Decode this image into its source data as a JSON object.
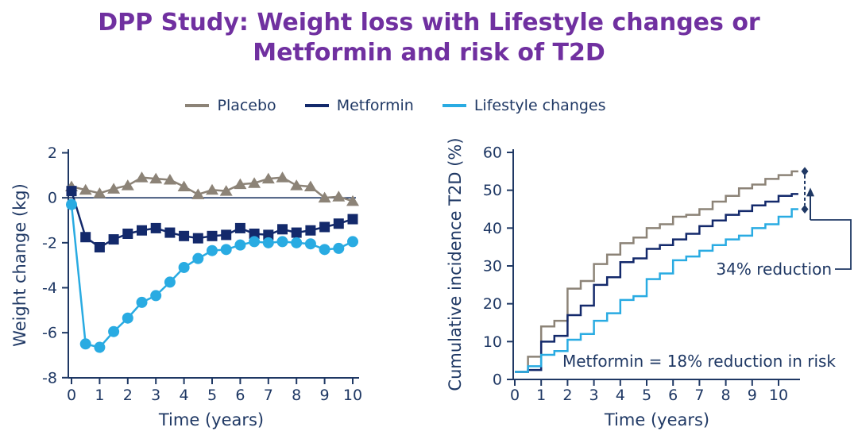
{
  "title": {
    "text": "DPP Study: Weight loss with Lifestyle changes or Metformin and risk of T2D",
    "color": "#7030A0"
  },
  "legend": {
    "items": [
      {
        "label": "Placebo",
        "color": "#8C8377"
      },
      {
        "label": "Metformin",
        "color": "#13296B"
      },
      {
        "label": "Lifestyle changes",
        "color": "#29ABE2"
      }
    ]
  },
  "colors": {
    "axis_and_text": "#1F3864",
    "title_purple": "#7030A0",
    "placebo_gray": "#8C8377",
    "metformin_navy": "#13296B",
    "lifestyle_cyan": "#29ABE2"
  },
  "chart_data": [
    {
      "id": "weight-change",
      "type": "line",
      "title": "",
      "xlabel": "Time (years)",
      "ylabel": "Weight change (kg)",
      "xlim": [
        0,
        10
      ],
      "ylim": [
        -8,
        2
      ],
      "xticks": [
        0,
        1,
        2,
        3,
        4,
        5,
        6,
        7,
        8,
        9,
        10
      ],
      "yticks": [
        2,
        0,
        -2,
        -4,
        -6,
        -8
      ],
      "grid": false,
      "zero_line": true,
      "legend_position": "top",
      "x": [
        0,
        0.5,
        1,
        1.5,
        2,
        2.5,
        3,
        3.5,
        4,
        4.5,
        5,
        5.5,
        6,
        6.5,
        7,
        7.5,
        8,
        8.5,
        9,
        9.5,
        10
      ],
      "series": [
        {
          "name": "Placebo",
          "color": "#8C8377",
          "marker": "triangle",
          "values": [
            0.5,
            0.35,
            0.2,
            0.4,
            0.55,
            0.9,
            0.85,
            0.8,
            0.5,
            0.15,
            0.35,
            0.3,
            0.6,
            0.65,
            0.85,
            0.9,
            0.55,
            0.5,
            0.0,
            0.05,
            -0.15
          ]
        },
        {
          "name": "Metformin",
          "color": "#13296B",
          "marker": "square",
          "values": [
            0.3,
            -1.75,
            -2.2,
            -1.85,
            -1.6,
            -1.45,
            -1.35,
            -1.55,
            -1.7,
            -1.8,
            -1.7,
            -1.65,
            -1.35,
            -1.6,
            -1.65,
            -1.4,
            -1.55,
            -1.45,
            -1.3,
            -1.15,
            -0.95
          ]
        },
        {
          "name": "Lifestyle changes",
          "color": "#29ABE2",
          "marker": "circle",
          "values": [
            -0.3,
            -6.5,
            -6.65,
            -5.95,
            -5.35,
            -4.65,
            -4.35,
            -3.75,
            -3.1,
            -2.7,
            -2.35,
            -2.3,
            -2.1,
            -1.95,
            -2.0,
            -1.95,
            -2.0,
            -2.05,
            -2.3,
            -2.25,
            -1.95
          ]
        }
      ]
    },
    {
      "id": "t2d-incidence",
      "type": "step",
      "title": "",
      "xlabel": "Time (years)",
      "ylabel": "Cumulative incidence T2D (%)",
      "xlim": [
        0,
        10.75
      ],
      "ylim": [
        0,
        60
      ],
      "xticks": [
        0,
        1,
        2,
        3,
        4,
        5,
        6,
        7,
        8,
        9,
        10
      ],
      "yticks": [
        0,
        10,
        20,
        30,
        40,
        50,
        60
      ],
      "grid": false,
      "x": [
        0,
        0.5,
        1,
        1.5,
        2,
        2.5,
        3,
        3.5,
        4,
        4.5,
        5,
        5.5,
        6,
        6.5,
        7,
        7.5,
        8,
        8.5,
        9,
        9.5,
        10,
        10.5
      ],
      "x_end": 10.75,
      "series": [
        {
          "name": "Placebo",
          "color": "#8C8377",
          "values": [
            2,
            6,
            14,
            15.5,
            24,
            26,
            30.5,
            33,
            36,
            37.5,
            40,
            41,
            43,
            43.5,
            45,
            47,
            48.5,
            50.5,
            51.5,
            53,
            54,
            55
          ]
        },
        {
          "name": "Metformin",
          "color": "#13296B",
          "values": [
            2,
            2.5,
            10,
            11.5,
            17,
            19.5,
            25,
            27,
            31,
            32,
            34.5,
            35.5,
            37,
            38.5,
            40.5,
            42,
            43.5,
            44.5,
            46,
            47,
            48.5,
            49
          ]
        },
        {
          "name": "Lifestyle changes",
          "color": "#29ABE2",
          "values": [
            2,
            3.5,
            6.5,
            7.5,
            10.5,
            12,
            15.5,
            17.5,
            21,
            22,
            26.5,
            28,
            31.5,
            32.5,
            34,
            35.5,
            37,
            38,
            40,
            41,
            43,
            45
          ]
        }
      ],
      "annotations": {
        "lifestyle_reduction_label": "34% reduction",
        "metformin_note": "Metformin = 18% reduction in risk"
      }
    }
  ]
}
